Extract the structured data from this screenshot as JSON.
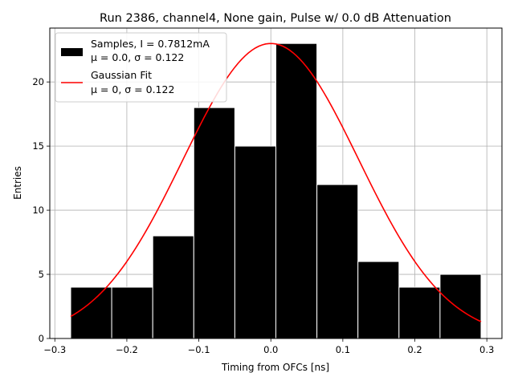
{
  "chart_data": {
    "type": "bar",
    "title": "Run 2386, channel4, None gain, Pulse w/ 0.0 dB Attenuation",
    "xlabel": "Timing from OFCs [ns]",
    "ylabel": "Entries",
    "xlim": [
      -0.307,
      0.321
    ],
    "ylim": [
      0,
      24.2
    ],
    "grid": true,
    "legend_position": "top-left",
    "x_ticks": [
      {
        "value": -0.3,
        "label": "−0.3"
      },
      {
        "value": -0.2,
        "label": "−0.2"
      },
      {
        "value": -0.1,
        "label": "−0.1"
      },
      {
        "value": 0.0,
        "label": "0.0"
      },
      {
        "value": 0.1,
        "label": "0.1"
      },
      {
        "value": 0.2,
        "label": "0.2"
      },
      {
        "value": 0.3,
        "label": "0.3"
      }
    ],
    "y_ticks": [
      {
        "value": 0,
        "label": "0"
      },
      {
        "value": 5,
        "label": "5"
      },
      {
        "value": 10,
        "label": "10"
      },
      {
        "value": 15,
        "label": "15"
      },
      {
        "value": 20,
        "label": "20"
      }
    ],
    "histogram": {
      "name": "Samples",
      "color": "#000000",
      "edge_color": "#ffffff",
      "bin_edges": [
        -0.278,
        -0.221,
        -0.164,
        -0.107,
        -0.05,
        0.007,
        0.064,
        0.121,
        0.178,
        0.235,
        0.292
      ],
      "counts": [
        4,
        4,
        8,
        18,
        15,
        23,
        12,
        6,
        4,
        5
      ]
    },
    "fit": {
      "name": "Gaussian Fit",
      "color": "#ff0000",
      "mu": 0.0,
      "sigma": 0.122,
      "amplitude": 23.0,
      "x_range": [
        -0.278,
        0.292
      ]
    },
    "legend": [
      {
        "label_line1": "Samples, I = 0.7812mA",
        "label_line2": "μ = 0.0, σ = 0.122"
      },
      {
        "label_line1": "Gaussian Fit",
        "label_line2": "μ = 0, σ = 0.122"
      }
    ]
  }
}
